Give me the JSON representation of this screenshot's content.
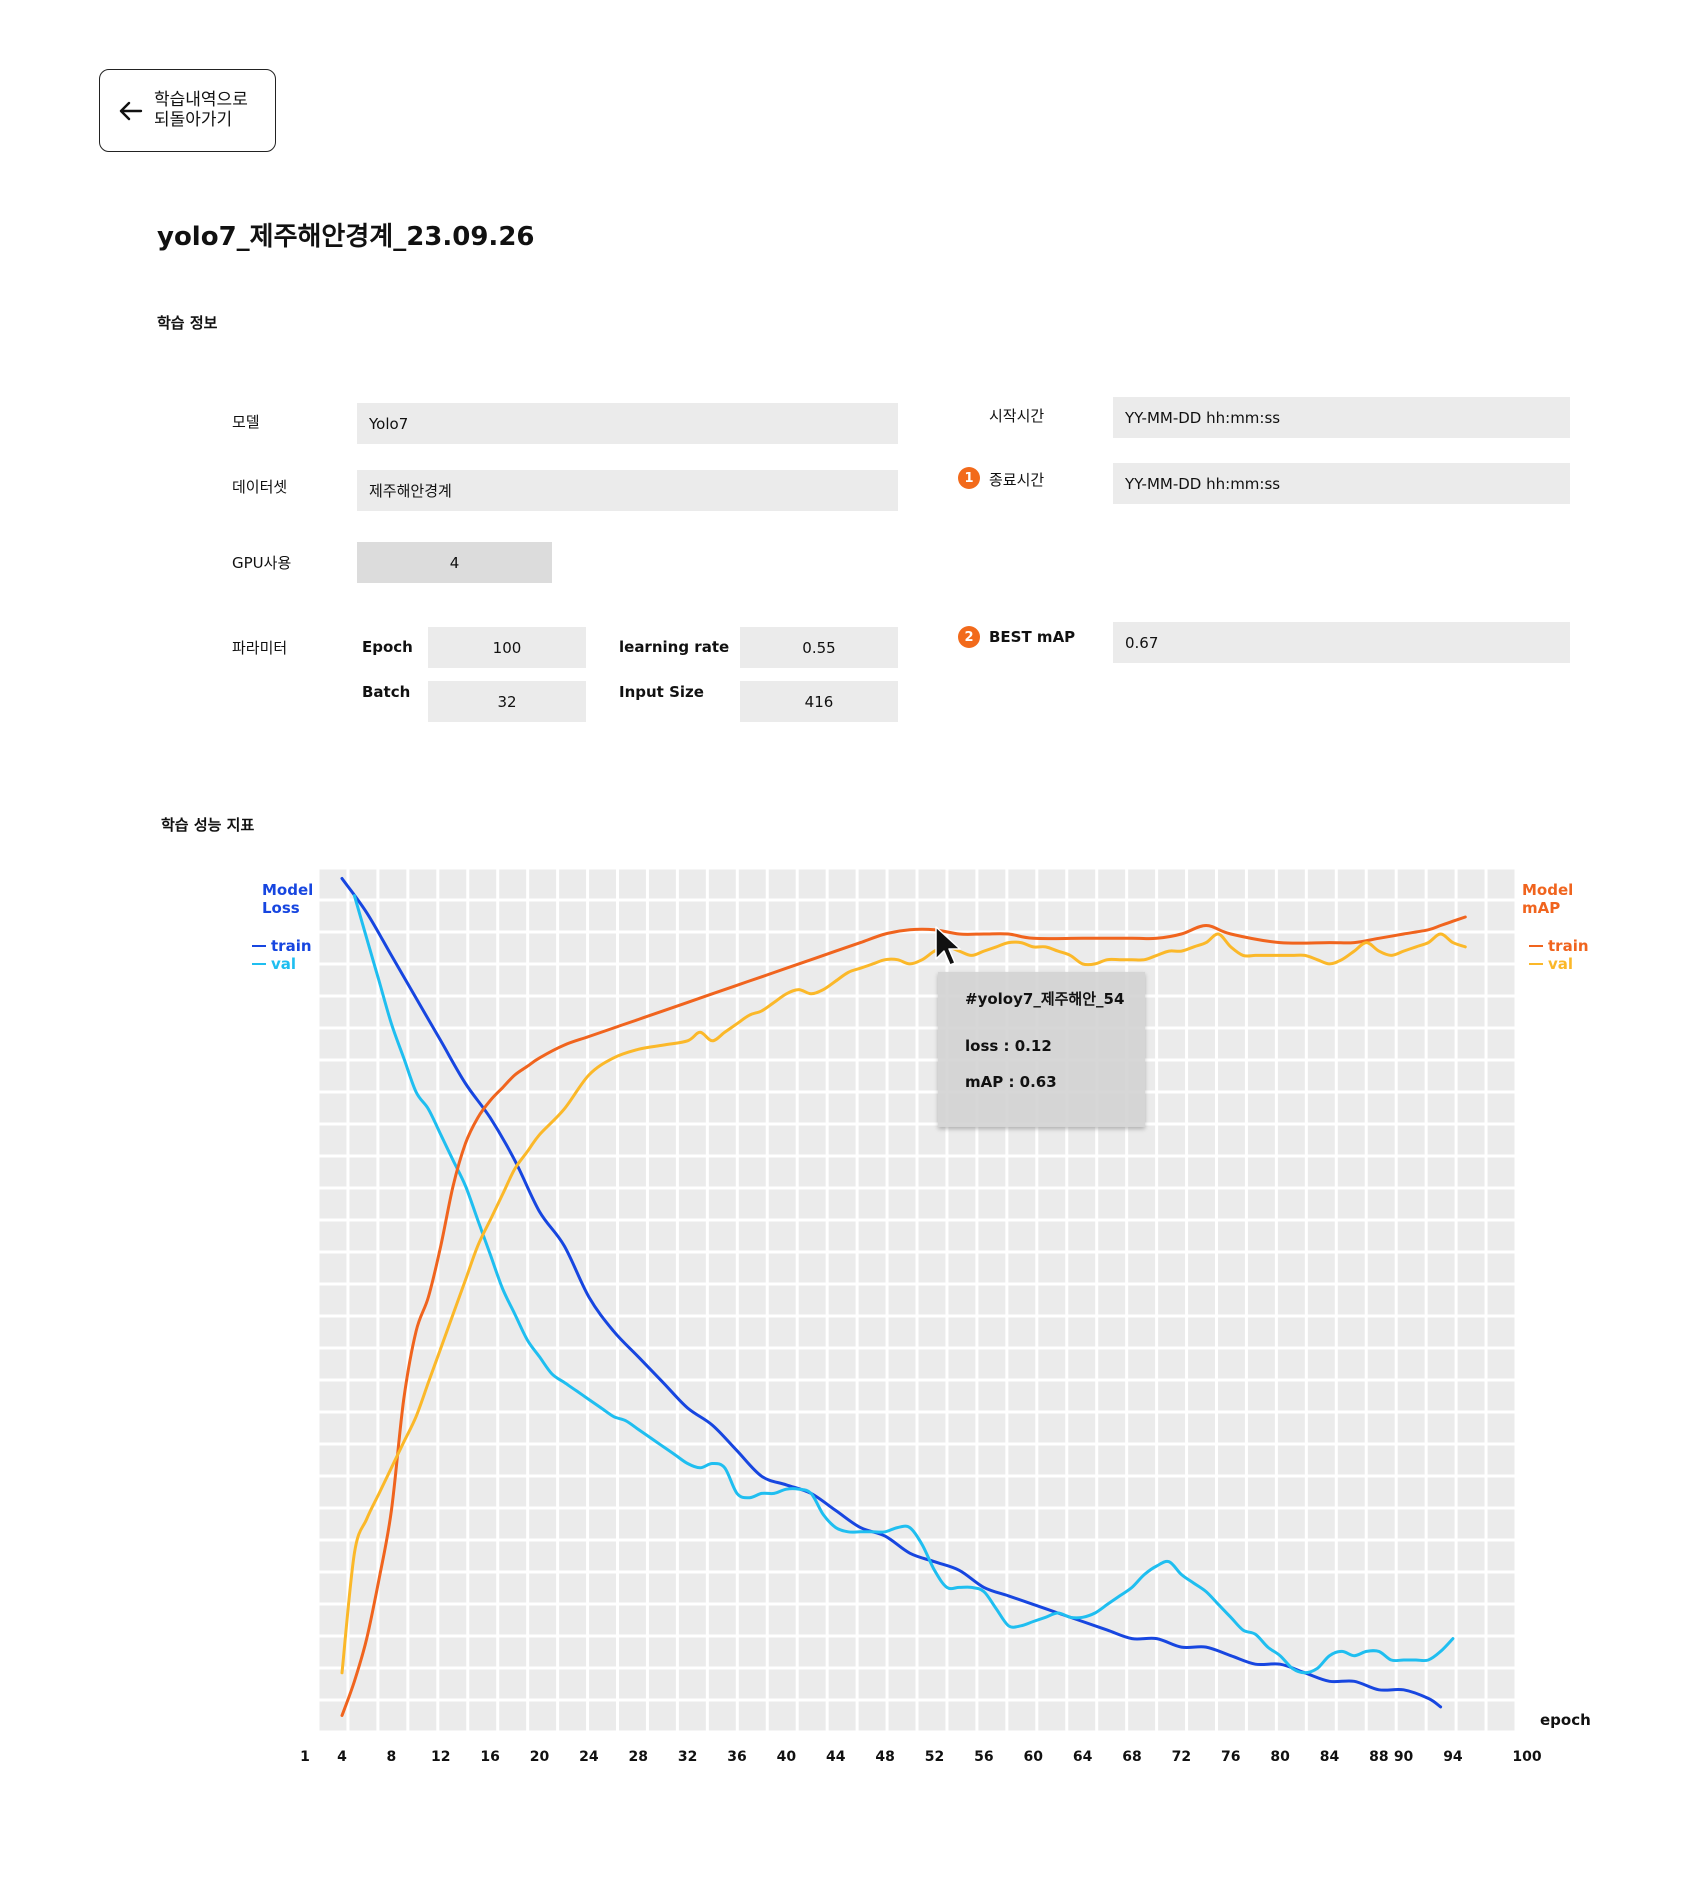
{
  "back_button": {
    "label_line1": "학습내역으로",
    "label_line2": "되돌아가기",
    "icon": "arrow-left-icon"
  },
  "page_title": "yolo7_제주해안경계_23.09.26",
  "info_section": {
    "title": "학습 정보",
    "model": {
      "label": "모델",
      "value": "Yolo7"
    },
    "dataset": {
      "label": "데이터셋",
      "value": "제주해안경계"
    },
    "gpu": {
      "label": "GPU사용",
      "value": "4"
    },
    "params": {
      "label": "파라미터",
      "epoch": {
        "label": "Epoch",
        "value": "100"
      },
      "learning_rate": {
        "label": "learning rate",
        "value": "0.55"
      },
      "batch": {
        "label": "Batch",
        "value": "32"
      },
      "input_size": {
        "label": "Input Size",
        "value": "416"
      }
    },
    "start_time": {
      "label": "시작시간",
      "value": "YY-MM-DD hh:mm:ss"
    },
    "end_time": {
      "badge": "1",
      "label": "종료시간",
      "value": "YY-MM-DD hh:mm:ss"
    },
    "best_map": {
      "badge": "2",
      "label": "BEST mAP",
      "value": "0.67"
    }
  },
  "perf_section": {
    "title": "학습 성능 지표"
  },
  "colors": {
    "loss_train": "#1746e0",
    "loss_val": "#1fbef0",
    "map_train": "#f0641e",
    "map_val": "#fbb829",
    "grid_bg": "#ebebeb",
    "grid_line": "#ffffff"
  },
  "tooltip": {
    "title": "#yoloy7_제주해안_54",
    "loss": "loss : 0.12",
    "map": "mAP : 0.63"
  },
  "chart_data": {
    "type": "line",
    "xlabel": "epoch",
    "left_axis_label": [
      "Model",
      "Loss"
    ],
    "right_axis_label": [
      "Model",
      "mAP"
    ],
    "left_legend": [
      "train",
      "val"
    ],
    "right_legend": [
      "train",
      "val"
    ],
    "x_ticks": [
      1,
      4,
      8,
      12,
      16,
      20,
      24,
      28,
      32,
      36,
      40,
      44,
      48,
      52,
      56,
      60,
      64,
      68,
      72,
      76,
      80,
      84,
      88,
      90,
      94,
      100
    ],
    "xlim": [
      1,
      100
    ],
    "ylim": [
      0,
      1
    ],
    "grid": true,
    "series": [
      {
        "name": "train",
        "axis": "loss",
        "x": [
          4,
          6,
          8,
          10,
          12,
          14,
          16,
          18,
          20,
          22,
          24,
          26,
          28,
          30,
          32,
          34,
          36,
          38,
          40,
          42,
          44,
          46,
          48,
          50,
          52,
          54,
          56,
          58,
          60,
          62,
          64,
          66,
          68,
          70,
          72,
          74,
          76,
          78,
          80,
          82,
          84,
          86,
          88,
          90,
          92,
          93
        ],
        "y": [
          0.99,
          0.95,
          0.9,
          0.85,
          0.8,
          0.75,
          0.71,
          0.66,
          0.6,
          0.56,
          0.5,
          0.46,
          0.43,
          0.4,
          0.37,
          0.35,
          0.32,
          0.29,
          0.28,
          0.27,
          0.25,
          0.23,
          0.22,
          0.2,
          0.19,
          0.18,
          0.16,
          0.15,
          0.14,
          0.13,
          0.12,
          0.11,
          0.1,
          0.1,
          0.09,
          0.09,
          0.08,
          0.07,
          0.07,
          0.06,
          0.05,
          0.05,
          0.04,
          0.04,
          0.03,
          0.02
        ]
      },
      {
        "name": "val",
        "axis": "loss",
        "x": [
          5,
          6,
          7,
          8,
          9,
          10,
          11,
          12,
          13,
          14,
          15,
          16,
          17,
          18,
          19,
          20,
          21,
          22,
          23,
          24,
          25,
          26,
          27,
          28,
          29,
          30,
          31,
          32,
          33,
          34,
          35,
          36,
          37,
          38,
          39,
          40,
          41,
          42,
          43,
          44,
          45,
          46,
          47,
          48,
          49,
          50,
          51,
          52,
          53,
          54,
          55,
          56,
          57,
          58,
          59,
          60,
          61,
          62,
          63,
          64,
          65,
          66,
          67,
          68,
          69,
          70,
          71,
          72,
          73,
          74,
          75,
          76,
          77,
          78,
          79,
          80,
          81,
          82,
          83,
          84,
          85,
          86,
          87,
          88,
          89,
          90,
          91,
          92,
          93,
          94
        ],
        "y": [
          0.97,
          0.92,
          0.87,
          0.82,
          0.78,
          0.74,
          0.72,
          0.69,
          0.66,
          0.63,
          0.59,
          0.55,
          0.51,
          0.48,
          0.45,
          0.43,
          0.41,
          0.4,
          0.39,
          0.38,
          0.37,
          0.36,
          0.355,
          0.345,
          0.335,
          0.325,
          0.315,
          0.305,
          0.3,
          0.305,
          0.3,
          0.27,
          0.265,
          0.27,
          0.27,
          0.275,
          0.275,
          0.27,
          0.245,
          0.23,
          0.225,
          0.225,
          0.225,
          0.225,
          0.23,
          0.23,
          0.21,
          0.18,
          0.16,
          0.16,
          0.16,
          0.155,
          0.135,
          0.115,
          0.115,
          0.12,
          0.125,
          0.13,
          0.125,
          0.125,
          0.13,
          0.14,
          0.15,
          0.16,
          0.175,
          0.185,
          0.19,
          0.175,
          0.165,
          0.155,
          0.14,
          0.125,
          0.11,
          0.105,
          0.09,
          0.08,
          0.065,
          0.06,
          0.065,
          0.08,
          0.085,
          0.08,
          0.085,
          0.085,
          0.075,
          0.075,
          0.075,
          0.075,
          0.085,
          0.1
        ]
      },
      {
        "name": "train",
        "axis": "map",
        "x": [
          4,
          5,
          6,
          7,
          8,
          9,
          10,
          11,
          12,
          13,
          14,
          15,
          16,
          17,
          18,
          19,
          20,
          22,
          24,
          26,
          28,
          30,
          32,
          34,
          36,
          38,
          40,
          42,
          44,
          46,
          48,
          50,
          52,
          54,
          56,
          58,
          60,
          64,
          68,
          70,
          72,
          74,
          76,
          80,
          84,
          86,
          88,
          90,
          92,
          93,
          94,
          95
        ],
        "y": [
          0.01,
          0.05,
          0.1,
          0.17,
          0.25,
          0.38,
          0.46,
          0.5,
          0.56,
          0.63,
          0.68,
          0.71,
          0.73,
          0.745,
          0.76,
          0.77,
          0.78,
          0.795,
          0.805,
          0.815,
          0.825,
          0.835,
          0.845,
          0.855,
          0.865,
          0.875,
          0.885,
          0.895,
          0.905,
          0.915,
          0.925,
          0.93,
          0.93,
          0.925,
          0.925,
          0.925,
          0.92,
          0.92,
          0.92,
          0.92,
          0.925,
          0.935,
          0.925,
          0.915,
          0.915,
          0.915,
          0.92,
          0.925,
          0.93,
          0.935,
          0.94,
          0.945
        ]
      },
      {
        "name": "val",
        "axis": "map",
        "x": [
          4,
          5,
          6,
          7,
          8,
          9,
          10,
          11,
          12,
          13,
          14,
          15,
          16,
          17,
          18,
          19,
          20,
          22,
          24,
          26,
          28,
          30,
          32,
          33,
          34,
          35,
          36,
          37,
          38,
          39,
          40,
          41,
          42,
          43,
          44,
          45,
          46,
          47,
          48,
          49,
          50,
          51,
          52,
          53,
          54,
          55,
          56,
          57,
          58,
          59,
          60,
          61,
          62,
          63,
          64,
          65,
          66,
          67,
          68,
          69,
          70,
          71,
          72,
          73,
          74,
          75,
          76,
          77,
          78,
          79,
          80,
          81,
          82,
          83,
          84,
          85,
          86,
          87,
          88,
          89,
          90,
          91,
          92,
          93,
          94,
          95
        ],
        "y": [
          0.06,
          0.2,
          0.24,
          0.27,
          0.3,
          0.33,
          0.36,
          0.4,
          0.44,
          0.48,
          0.52,
          0.56,
          0.59,
          0.62,
          0.65,
          0.67,
          0.69,
          0.72,
          0.76,
          0.78,
          0.79,
          0.795,
          0.8,
          0.81,
          0.8,
          0.81,
          0.82,
          0.83,
          0.835,
          0.845,
          0.855,
          0.86,
          0.855,
          0.86,
          0.87,
          0.88,
          0.885,
          0.89,
          0.895,
          0.895,
          0.89,
          0.895,
          0.905,
          0.91,
          0.905,
          0.9,
          0.905,
          0.91,
          0.915,
          0.915,
          0.91,
          0.91,
          0.905,
          0.9,
          0.89,
          0.89,
          0.895,
          0.895,
          0.895,
          0.895,
          0.9,
          0.905,
          0.905,
          0.91,
          0.915,
          0.925,
          0.91,
          0.9,
          0.9,
          0.9,
          0.9,
          0.9,
          0.9,
          0.895,
          0.89,
          0.895,
          0.905,
          0.915,
          0.905,
          0.9,
          0.905,
          0.91,
          0.915,
          0.925,
          0.915,
          0.91
        ]
      }
    ]
  }
}
